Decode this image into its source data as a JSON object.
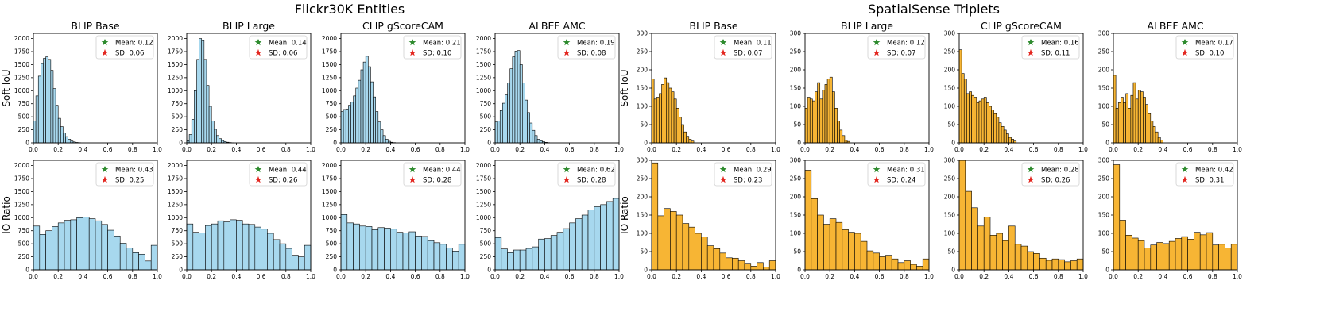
{
  "figure": {
    "groups": [
      {
        "title": "Flickr30K Entities",
        "color": "#a7d8ee"
      },
      {
        "title": "SpatialSense Triplets",
        "color": "#f7b534"
      }
    ],
    "legend_markers": {
      "mean_color": "#2e8b2e",
      "sd_color": "#e3261f"
    }
  },
  "chart_data": [
    {
      "type": "bar",
      "group": "Flickr30K Entities",
      "model": "BLIP Base",
      "ylabel": "Soft IoU",
      "xlim": [
        0,
        1
      ],
      "ylim": [
        0,
        2100
      ],
      "yticks": [
        0,
        250,
        500,
        750,
        1000,
        1250,
        1500,
        1750,
        2000
      ],
      "xticks": [
        "0.0",
        "0.2",
        "0.4",
        "0.6",
        "0.8",
        "1.0"
      ],
      "bin_width": 0.02,
      "values": [
        420,
        900,
        1280,
        1520,
        1620,
        1650,
        1600,
        1390,
        1040,
        720,
        470,
        310,
        190,
        120,
        70,
        35,
        18,
        8,
        4
      ],
      "legend": [
        "Mean: 0.12",
        "SD: 0.06"
      ]
    },
    {
      "type": "bar",
      "group": "Flickr30K Entities",
      "model": "BLIP Large",
      "ylabel": "",
      "xlim": [
        0,
        1
      ],
      "ylim": [
        0,
        2100
      ],
      "yticks": [
        0,
        250,
        500,
        750,
        1000,
        1250,
        1500,
        1750,
        2000
      ],
      "xticks": [
        "0.0",
        "0.2",
        "0.4",
        "0.6",
        "0.8",
        "1.0"
      ],
      "bin_width": 0.02,
      "values": [
        40,
        160,
        450,
        1000,
        1600,
        2000,
        1960,
        1600,
        1100,
        700,
        420,
        260,
        140,
        80,
        45,
        25,
        12,
        6,
        3
      ],
      "legend": [
        "Mean: 0.14",
        "SD: 0.06"
      ]
    },
    {
      "type": "bar",
      "group": "Flickr30K Entities",
      "model": "CLIP gScoreCAM",
      "ylabel": "",
      "xlim": [
        0,
        1
      ],
      "ylim": [
        0,
        2100
      ],
      "yticks": [
        0,
        250,
        500,
        750,
        1000,
        1250,
        1500,
        1750,
        2000
      ],
      "xticks": [
        "0.0",
        "0.2",
        "0.4",
        "0.6",
        "0.8",
        "1.0"
      ],
      "bin_width": 0.02,
      "values": [
        600,
        640,
        650,
        720,
        780,
        900,
        1050,
        1200,
        1400,
        1550,
        1660,
        1460,
        1170,
        880,
        600,
        400,
        250,
        140,
        70,
        30,
        12,
        5
      ],
      "legend": [
        "Mean: 0.21",
        "SD: 0.10"
      ]
    },
    {
      "type": "bar",
      "group": "Flickr30K Entities",
      "model": "ALBEF AMC",
      "ylabel": "",
      "xlim": [
        0,
        1
      ],
      "ylim": [
        0,
        2100
      ],
      "yticks": [
        0,
        250,
        500,
        750,
        1000,
        1250,
        1500,
        1750,
        2000
      ],
      "xticks": [
        "0.0",
        "0.2",
        "0.4",
        "0.6",
        "0.8",
        "1.0"
      ],
      "bin_width": 0.02,
      "values": [
        400,
        420,
        620,
        760,
        920,
        1150,
        1420,
        1650,
        1760,
        1770,
        1500,
        1150,
        820,
        580,
        380,
        240,
        140,
        70,
        40,
        25,
        10,
        4
      ],
      "legend": [
        "Mean: 0.19",
        "SD: 0.08"
      ]
    },
    {
      "type": "bar",
      "group": "SpatialSense Triplets",
      "model": "BLIP Base",
      "ylabel": "Soft IoU",
      "xlim": [
        0,
        1
      ],
      "ylim": [
        0,
        300
      ],
      "yticks": [
        0,
        50,
        100,
        150,
        200,
        250,
        300
      ],
      "xticks": [
        "0.0",
        "0.2",
        "0.4",
        "0.6",
        "0.8",
        "1.0"
      ],
      "bin_width": 0.02,
      "values": [
        175,
        120,
        125,
        135,
        160,
        178,
        165,
        150,
        140,
        120,
        95,
        70,
        50,
        30,
        18,
        10,
        5
      ],
      "legend": [
        "Mean: 0.11",
        "SD: 0.07"
      ]
    },
    {
      "type": "bar",
      "group": "SpatialSense Triplets",
      "model": "BLIP Large",
      "ylabel": "",
      "xlim": [
        0,
        1
      ],
      "ylim": [
        0,
        300
      ],
      "yticks": [
        0,
        50,
        100,
        150,
        200,
        250,
        300
      ],
      "xticks": [
        "0.0",
        "0.2",
        "0.4",
        "0.6",
        "0.8",
        "1.0"
      ],
      "bin_width": 0.02,
      "values": [
        95,
        125,
        120,
        115,
        140,
        165,
        120,
        145,
        160,
        175,
        180,
        140,
        95,
        60,
        35,
        20,
        8,
        4
      ],
      "legend": [
        "Mean: 0.12",
        "SD: 0.07"
      ]
    },
    {
      "type": "bar",
      "group": "SpatialSense Triplets",
      "model": "CLIP gScoreCAM",
      "ylabel": "",
      "xlim": [
        0,
        1
      ],
      "ylim": [
        0,
        300
      ],
      "yticks": [
        0,
        50,
        100,
        150,
        200,
        250,
        300
      ],
      "xticks": [
        "0.0",
        "0.2",
        "0.4",
        "0.6",
        "0.8",
        "1.0"
      ],
      "bin_width": 0.02,
      "values": [
        255,
        190,
        175,
        135,
        140,
        130,
        125,
        110,
        115,
        120,
        125,
        110,
        100,
        90,
        80,
        70,
        55,
        45,
        35,
        25,
        15,
        10,
        5
      ],
      "legend": [
        "Mean: 0.16",
        "SD: 0.11"
      ]
    },
    {
      "type": "bar",
      "group": "SpatialSense Triplets",
      "model": "ALBEF AMC",
      "ylabel": "",
      "xlim": [
        0,
        1
      ],
      "ylim": [
        0,
        300
      ],
      "yticks": [
        0,
        50,
        100,
        150,
        200,
        250,
        300
      ],
      "xticks": [
        "0.0",
        "0.2",
        "0.4",
        "0.6",
        "0.8",
        "1.0"
      ],
      "bin_width": 0.02,
      "values": [
        185,
        95,
        110,
        125,
        110,
        135,
        95,
        130,
        165,
        120,
        145,
        140,
        125,
        105,
        80,
        60,
        45,
        30,
        15,
        8
      ],
      "legend": [
        "Mean: 0.17",
        "SD: 0.10"
      ]
    },
    {
      "type": "bar",
      "group": "Flickr30K Entities",
      "model": "",
      "ylabel": "IO Ratio",
      "xlim": [
        0,
        1
      ],
      "ylim": [
        0,
        2100
      ],
      "yticks": [
        0,
        250,
        500,
        750,
        1000,
        1250,
        1500,
        1750,
        2000
      ],
      "xticks": [
        "0.0",
        "0.2",
        "0.4",
        "0.6",
        "0.8",
        "1.0"
      ],
      "bin_width": 0.05,
      "values": [
        840,
        680,
        750,
        830,
        900,
        950,
        960,
        1000,
        1010,
        980,
        940,
        870,
        760,
        650,
        510,
        420,
        330,
        300,
        170,
        470
      ],
      "legend": [
        "Mean: 0.43",
        "SD: 0.25"
      ]
    },
    {
      "type": "bar",
      "group": "Flickr30K Entities",
      "model": "",
      "ylabel": "",
      "xlim": [
        0,
        1
      ],
      "ylim": [
        0,
        2100
      ],
      "yticks": [
        0,
        250,
        500,
        750,
        1000,
        1250,
        1500,
        1750,
        2000
      ],
      "xticks": [
        "0.0",
        "0.2",
        "0.4",
        "0.6",
        "0.8",
        "1.0"
      ],
      "bin_width": 0.05,
      "values": [
        880,
        720,
        710,
        850,
        880,
        940,
        920,
        960,
        950,
        880,
        870,
        820,
        780,
        700,
        580,
        500,
        410,
        280,
        250,
        470
      ],
      "legend": [
        "Mean: 0.44",
        "SD: 0.26"
      ]
    },
    {
      "type": "bar",
      "group": "Flickr30K Entities",
      "model": "",
      "ylabel": "",
      "xlim": [
        0,
        1
      ],
      "ylim": [
        0,
        2100
      ],
      "yticks": [
        0,
        250,
        500,
        750,
        1000,
        1250,
        1500,
        1750,
        2000
      ],
      "xticks": [
        "0.0",
        "0.2",
        "0.4",
        "0.6",
        "0.8",
        "1.0"
      ],
      "bin_width": 0.05,
      "values": [
        1060,
        900,
        880,
        840,
        830,
        770,
        810,
        800,
        780,
        720,
        710,
        730,
        650,
        640,
        560,
        520,
        490,
        420,
        360,
        490
      ],
      "legend": [
        "Mean: 0.44",
        "SD: 0.28"
      ]
    },
    {
      "type": "bar",
      "group": "Flickr30K Entities",
      "model": "",
      "ylabel": "",
      "xlim": [
        0,
        1
      ],
      "ylim": [
        0,
        2100
      ],
      "yticks": [
        0,
        250,
        500,
        750,
        1000,
        1250,
        1500,
        1750,
        2000
      ],
      "xticks": [
        "0.0",
        "0.2",
        "0.4",
        "0.6",
        "0.8",
        "1.0"
      ],
      "bin_width": 0.05,
      "values": [
        620,
        400,
        330,
        380,
        380,
        410,
        440,
        590,
        600,
        660,
        720,
        790,
        900,
        980,
        1050,
        1150,
        1210,
        1250,
        1310,
        1370
      ],
      "legend": [
        "Mean: 0.62",
        "SD: 0.28"
      ]
    },
    {
      "type": "bar",
      "group": "SpatialSense Triplets",
      "model": "",
      "ylabel": "IO Ratio",
      "xlim": [
        0,
        1
      ],
      "ylim": [
        0,
        300
      ],
      "yticks": [
        0,
        50,
        100,
        150,
        200,
        250,
        300
      ],
      "xticks": [
        "0.0",
        "0.2",
        "0.4",
        "0.6",
        "0.8",
        "1.0"
      ],
      "bin_width": 0.05,
      "values": [
        293,
        148,
        168,
        160,
        150,
        127,
        117,
        100,
        90,
        66,
        58,
        46,
        33,
        32,
        25,
        18,
        10,
        20,
        8,
        25
      ],
      "legend": [
        "Mean: 0.29",
        "SD: 0.23"
      ]
    },
    {
      "type": "bar",
      "group": "SpatialSense Triplets",
      "model": "",
      "ylabel": "",
      "xlim": [
        0,
        1
      ],
      "ylim": [
        0,
        300
      ],
      "yticks": [
        0,
        50,
        100,
        150,
        200,
        250,
        300
      ],
      "xticks": [
        "0.0",
        "0.2",
        "0.4",
        "0.6",
        "0.8",
        "1.0"
      ],
      "bin_width": 0.05,
      "values": [
        273,
        195,
        150,
        125,
        140,
        130,
        110,
        103,
        100,
        78,
        52,
        46,
        36,
        40,
        30,
        20,
        25,
        15,
        10,
        30
      ],
      "legend": [
        "Mean: 0.31",
        "SD: 0.24"
      ]
    },
    {
      "type": "bar",
      "group": "SpatialSense Triplets",
      "model": "",
      "ylabel": "",
      "xlim": [
        0,
        1
      ],
      "ylim": [
        0,
        300
      ],
      "yticks": [
        0,
        50,
        100,
        150,
        200,
        250,
        300
      ],
      "xticks": [
        "0.0",
        "0.2",
        "0.4",
        "0.6",
        "0.8",
        "1.0"
      ],
      "bin_width": 0.05,
      "values": [
        300,
        215,
        170,
        120,
        145,
        95,
        100,
        80,
        120,
        70,
        65,
        50,
        45,
        32,
        26,
        30,
        28,
        22,
        25,
        30
      ],
      "legend": [
        "Mean: 0.28",
        "SD: 0.26"
      ]
    },
    {
      "type": "bar",
      "group": "SpatialSense Triplets",
      "model": "",
      "ylabel": "",
      "xlim": [
        0,
        1
      ],
      "ylim": [
        0,
        300
      ],
      "yticks": [
        0,
        50,
        100,
        150,
        200,
        250,
        300
      ],
      "xticks": [
        "0.0",
        "0.2",
        "0.4",
        "0.6",
        "0.8",
        "1.0"
      ],
      "bin_width": 0.05,
      "values": [
        288,
        136,
        95,
        87,
        80,
        60,
        68,
        75,
        72,
        78,
        86,
        91,
        84,
        103,
        96,
        102,
        68,
        70,
        60,
        70
      ],
      "legend": [
        "Mean: 0.42",
        "SD: 0.31"
      ]
    }
  ]
}
